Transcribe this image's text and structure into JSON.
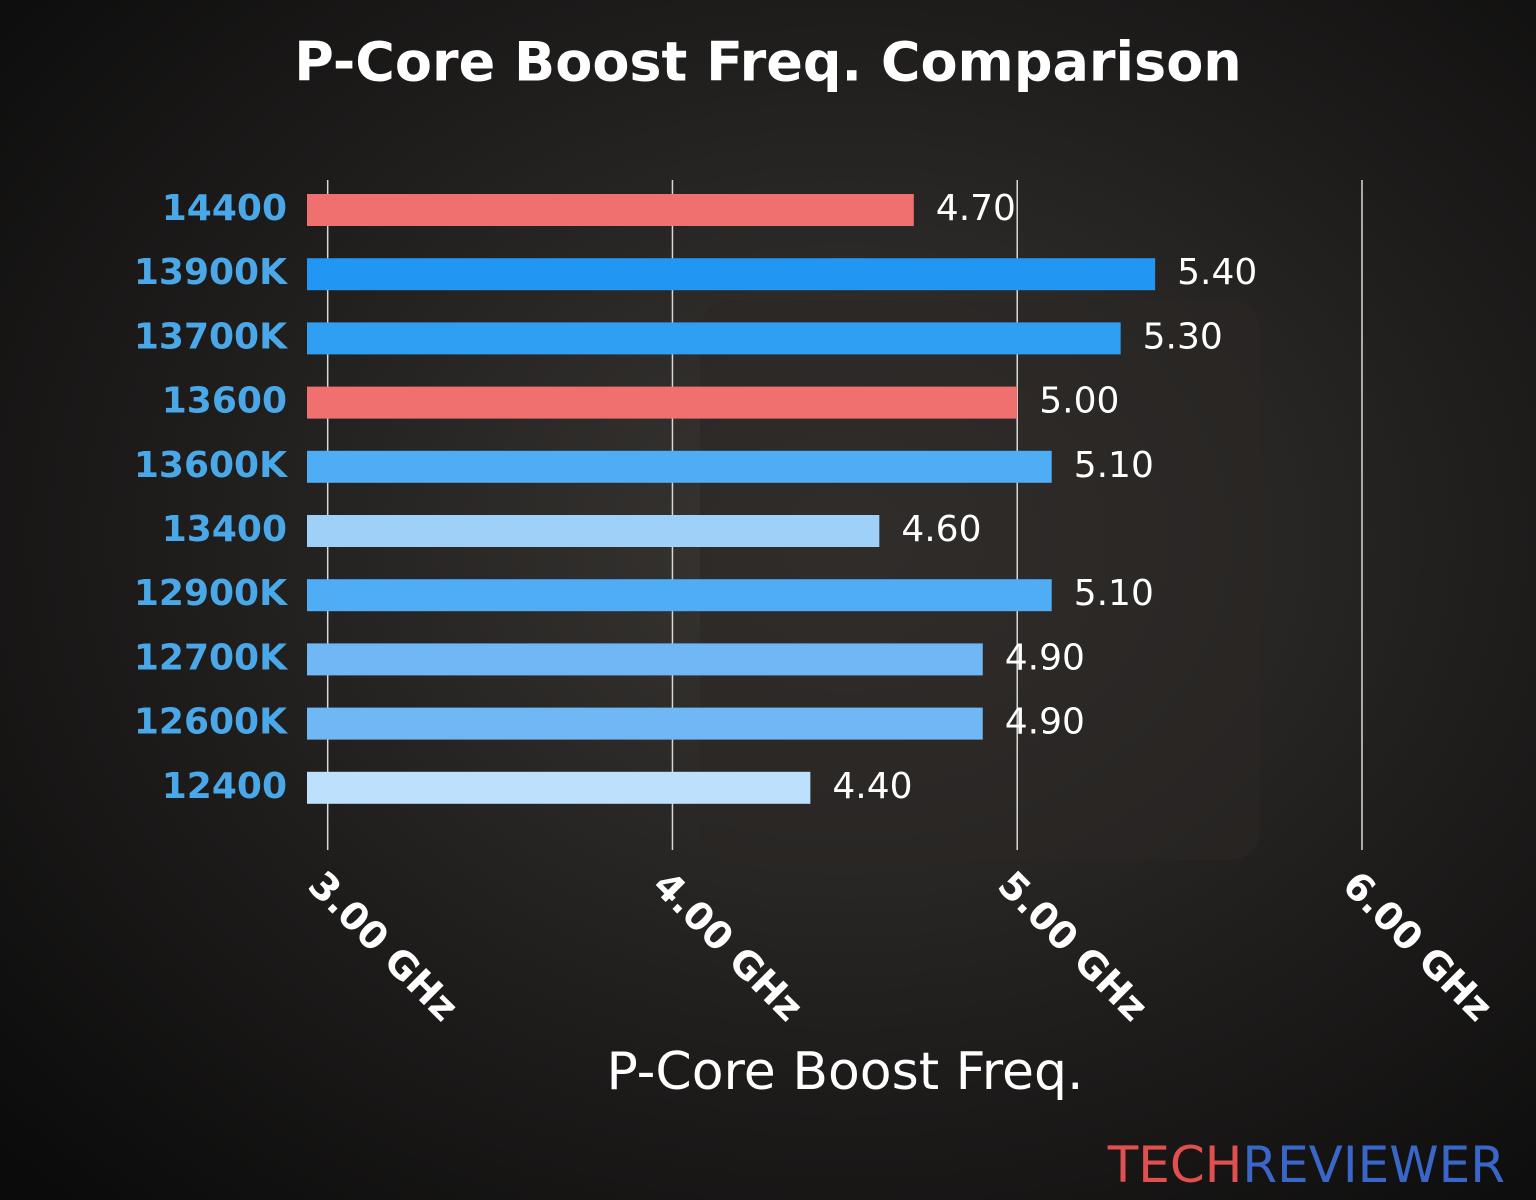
{
  "chart_data": {
    "type": "bar",
    "orientation": "horizontal",
    "title": "P-Core Boost Freq. Comparison",
    "x_label": "P-Core Boost Freq.",
    "categories": [
      "14400",
      "13900K",
      "13700K",
      "13600",
      "13600K",
      "13400",
      "12900K",
      "12700K",
      "12600K",
      "12400"
    ],
    "values": [
      4.7,
      5.4,
      5.3,
      5.0,
      5.1,
      4.6,
      5.1,
      4.9,
      4.9,
      4.4
    ],
    "value_labels": [
      "4.70",
      "5.40",
      "5.30",
      "5.00",
      "5.10",
      "4.60",
      "5.10",
      "4.90",
      "4.90",
      "4.40"
    ],
    "colors": [
      "#f07070",
      "#2196f3",
      "#2f9ff3",
      "#f07070",
      "#4eadf5",
      "#9fd0f8",
      "#4eadf5",
      "#70b8f5",
      "#70b8f5",
      "#bde0fc"
    ],
    "xlim": [
      2.94,
      6.0
    ],
    "xticks": [
      {
        "value": 3,
        "label": "3.00 GHz"
      },
      {
        "value": 4,
        "label": "4.00 GHz"
      },
      {
        "value": 5,
        "label": "5.00 GHz"
      },
      {
        "value": 6,
        "label": "6.00 GHz"
      }
    ],
    "grid": true,
    "watermark": [
      "TECH",
      "REVIEWER"
    ]
  }
}
